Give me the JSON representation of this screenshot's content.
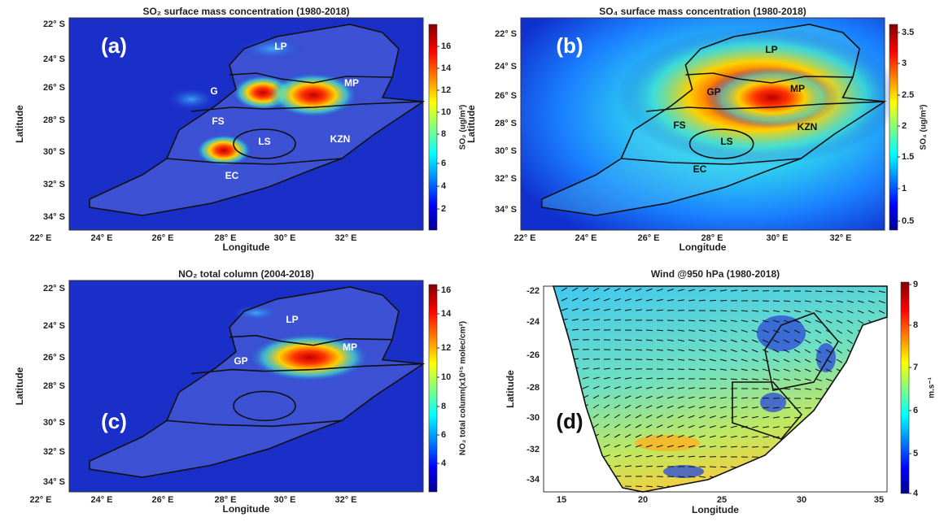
{
  "panels": [
    {
      "title": "SO₂ surface mass concentration (1980-2018)",
      "label": "(a)",
      "xlabel": "Longitude",
      "ylabel": "Latitude",
      "xticks": [
        "22° E",
        "24° E",
        "26° E",
        "28° E",
        "30° E",
        "32° E"
      ],
      "yticks": [
        "22° S",
        "24° S",
        "26° S",
        "28° S",
        "30° S",
        "32° S",
        "34° S"
      ],
      "colorbar_label": "SO₂ (ug/m³)",
      "colorbar_ticks": [
        16,
        14,
        12,
        10,
        8,
        6,
        4,
        2
      ],
      "regions": [
        "LP",
        "G",
        "MP",
        "FS",
        "LS",
        "KZN",
        "EC"
      ]
    },
    {
      "title": "SO₄ surface mass concentration (1980-2018)",
      "label": "(b)",
      "xlabel": "Longitude",
      "ylabel": "Latitude",
      "xticks": [
        "22° E",
        "24° E",
        "26° E",
        "28° E",
        "30° E",
        "32° E"
      ],
      "yticks": [
        "22° S",
        "24° S",
        "26° S",
        "28° S",
        "30° S",
        "32° S",
        "34° S"
      ],
      "colorbar_label": "SO₄ (ug/m³)",
      "colorbar_ticks": [
        3.5,
        3,
        2.5,
        2,
        1.5,
        1,
        0.5
      ],
      "regions": [
        "LP",
        "GP",
        "MP",
        "FS",
        "KZN",
        "LS",
        "EC"
      ]
    },
    {
      "title": "NO₂ total column (2004-2018)",
      "label": "(c)",
      "xlabel": "Longitude",
      "ylabel": "Latitude",
      "xticks": [
        "22° E",
        "24° E",
        "26° E",
        "28° E",
        "30° E",
        "32° E"
      ],
      "yticks": [
        "22° S",
        "24° S",
        "26° S",
        "28° S",
        "30° S",
        "32° S",
        "34° S"
      ],
      "colorbar_label": "NO₂ total column(x10¹⁵ molec/cm²)",
      "colorbar_ticks": [
        16,
        14,
        12,
        10,
        8,
        6,
        4
      ],
      "regions": [
        "LP",
        "GP",
        "MP"
      ]
    },
    {
      "title": "Wind @950 hPa (1980-2018)",
      "label": "(d)",
      "xlabel": "Longitude",
      "ylabel": "Latitude",
      "xticks": [
        15,
        20,
        25,
        30,
        35
      ],
      "yticks": [
        -22,
        -24,
        -26,
        -28,
        -30,
        -32,
        -34
      ],
      "colorbar_label": "m.s⁻¹",
      "colorbar_ticks": [
        9,
        8,
        7,
        6,
        5,
        4
      ],
      "regions": []
    }
  ]
}
